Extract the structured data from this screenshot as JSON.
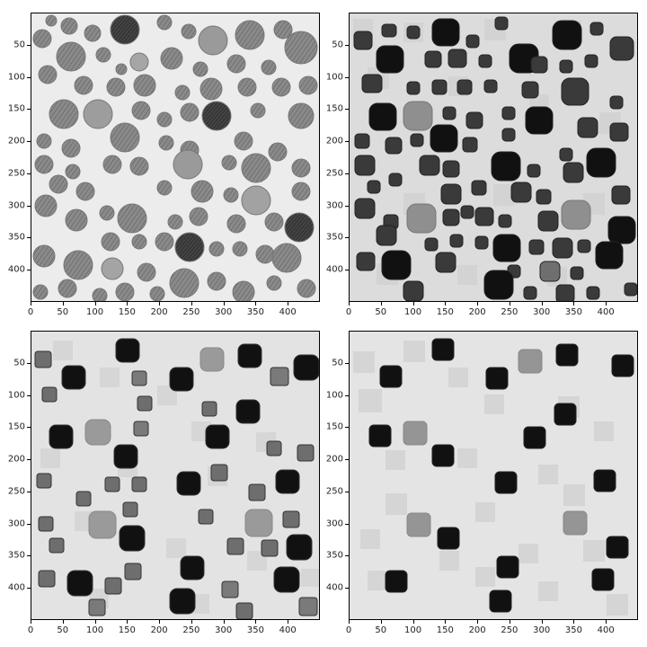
{
  "figure": {
    "panels": [
      {
        "name": "panel-top-left",
        "texture": "circles-hatched"
      },
      {
        "name": "panel-top-right",
        "texture": "octagons-dark"
      },
      {
        "name": "panel-bottom-left",
        "texture": "rounded-squares-mixed"
      },
      {
        "name": "panel-bottom-right",
        "texture": "rounded-squares-sparse"
      }
    ],
    "x_ticks": [
      "0",
      "50",
      "100",
      "150",
      "200",
      "250",
      "300",
      "350",
      "400"
    ],
    "y_ticks": [
      "50",
      "100",
      "150",
      "200",
      "250",
      "300",
      "350",
      "400"
    ],
    "colors": {
      "background": "#e6e6e6",
      "dark": "#111111",
      "mid": "#7a7a7a",
      "light": "#c9c9c9"
    }
  }
}
